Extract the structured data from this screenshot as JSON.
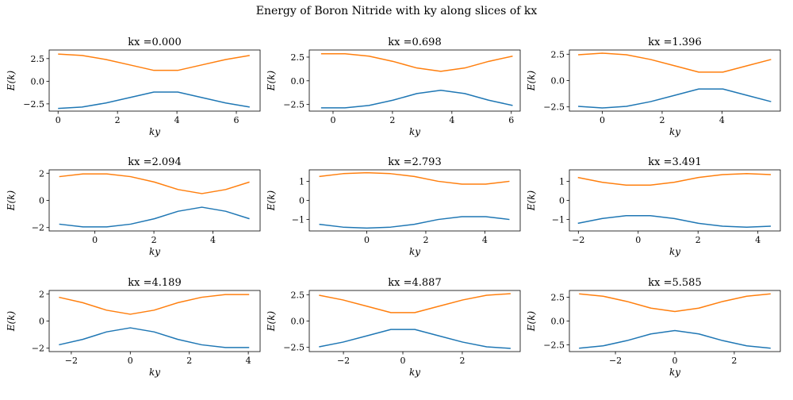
{
  "figure": {
    "title": "Energy of Boron Nitride with ky along slices of kx"
  },
  "colors": {
    "band_lower": "#1f77b4",
    "band_upper": "#ff7f0e",
    "axes": "#000000"
  },
  "chart_data": [
    {
      "type": "line",
      "title": "kx =0.000",
      "kx": "0.000",
      "xlabel": "ky",
      "ylabel": "E(k)",
      "xlim": [
        -0.3,
        6.8
      ],
      "ylim": [
        -3.3,
        3.45
      ],
      "xticks": [
        0,
        2,
        4,
        6
      ],
      "yticks": [
        -2.5,
        0.0,
        2.5
      ],
      "ytick_labels": [
        "−2.5",
        "0.0",
        "2.5"
      ],
      "x": [
        0.0,
        0.806,
        1.612,
        2.418,
        3.224,
        4.03,
        4.836,
        5.642,
        6.448
      ],
      "series": [
        {
          "values": [
            -3.0,
            -2.85,
            -2.4,
            -1.8,
            -1.2,
            -1.2,
            -1.8,
            -2.4,
            -2.85
          ]
        },
        {
          "values": [
            3.0,
            2.85,
            2.4,
            1.8,
            1.2,
            1.2,
            1.8,
            2.4,
            2.85
          ]
        }
      ]
    },
    {
      "type": "line",
      "title": "kx =0.698",
      "kx": "0.698",
      "xlabel": "ky",
      "ylabel": "E(k)",
      "xlim": [
        -0.8,
        6.3
      ],
      "ylim": [
        -3.2,
        3.25
      ],
      "xticks": [
        0,
        2,
        4,
        6
      ],
      "yticks": [
        -2.5,
        0.0,
        2.5
      ],
      "ytick_labels": [
        "−2.5",
        "0.0",
        "2.5"
      ],
      "x": [
        -0.403,
        0.403,
        1.209,
        2.015,
        2.821,
        3.627,
        4.433,
        5.239,
        6.045
      ],
      "series": [
        {
          "values": [
            -2.85,
            -2.85,
            -2.6,
            -2.05,
            -1.35,
            -1.0,
            -1.35,
            -2.05,
            -2.6
          ]
        },
        {
          "values": [
            2.85,
            2.85,
            2.6,
            2.05,
            1.35,
            1.0,
            1.35,
            2.05,
            2.6
          ]
        }
      ]
    },
    {
      "type": "line",
      "title": "kx =1.396",
      "kx": "1.396",
      "xlabel": "ky",
      "ylabel": "E(k)",
      "xlim": [
        -1.1,
        5.95
      ],
      "ylim": [
        -2.9,
        2.9
      ],
      "xticks": [
        0,
        2,
        4
      ],
      "yticks": [
        -2.5,
        0.0,
        2.5
      ],
      "ytick_labels": [
        "−2.5",
        "0.0",
        "2.5"
      ],
      "x": [
        -0.806,
        0.0,
        0.806,
        1.612,
        2.418,
        3.224,
        4.03,
        4.836,
        5.642
      ],
      "series": [
        {
          "values": [
            -2.45,
            -2.6,
            -2.45,
            -2.0,
            -1.4,
            -0.8,
            -0.8,
            -1.4,
            -2.0
          ]
        },
        {
          "values": [
            2.45,
            2.6,
            2.45,
            2.0,
            1.4,
            0.8,
            0.8,
            1.4,
            2.0
          ]
        }
      ]
    },
    {
      "type": "line",
      "title": "kx =2.094",
      "kx": "2.094",
      "xlabel": "ky",
      "ylabel": "E(k)",
      "xlim": [
        -1.55,
        5.6
      ],
      "ylim": [
        -2.25,
        2.25
      ],
      "xticks": [
        0,
        2,
        4
      ],
      "yticks": [
        -2,
        0,
        2
      ],
      "ytick_labels": [
        "−2",
        "0",
        "2"
      ],
      "x": [
        -1.209,
        -0.403,
        0.403,
        1.209,
        2.015,
        2.821,
        3.627,
        4.433,
        5.239
      ],
      "series": [
        {
          "values": [
            -1.75,
            -1.95,
            -1.95,
            -1.75,
            -1.35,
            -0.8,
            -0.5,
            -0.8,
            -1.35
          ]
        },
        {
          "values": [
            1.75,
            1.95,
            1.95,
            1.75,
            1.35,
            0.8,
            0.5,
            0.8,
            1.35
          ]
        }
      ]
    },
    {
      "type": "line",
      "title": "kx =2.793",
      "kx": "2.793",
      "xlabel": "ky",
      "ylabel": "E(k)",
      "xlim": [
        -1.95,
        5.2
      ],
      "ylim": [
        -1.6,
        1.6
      ],
      "xticks": [
        0,
        2,
        4
      ],
      "yticks": [
        -1,
        0,
        1
      ],
      "ytick_labels": [
        "−1",
        "0",
        "1"
      ],
      "x": [
        -1.612,
        -0.806,
        0.0,
        0.806,
        1.612,
        2.418,
        3.224,
        4.03,
        4.836
      ],
      "series": [
        {
          "values": [
            -1.25,
            -1.4,
            -1.45,
            -1.4,
            -1.25,
            -1.0,
            -0.85,
            -0.85,
            -1.0
          ]
        },
        {
          "values": [
            1.25,
            1.4,
            1.45,
            1.4,
            1.25,
            1.0,
            0.85,
            0.85,
            1.0
          ]
        }
      ]
    },
    {
      "type": "line",
      "title": "kx =3.491",
      "kx": "3.491",
      "xlabel": "ky",
      "ylabel": "E(k)",
      "xlim": [
        -2.3,
        4.75
      ],
      "ylim": [
        -1.6,
        1.6
      ],
      "xticks": [
        -2,
        0,
        2,
        4
      ],
      "yticks": [
        -1,
        0,
        1
      ],
      "xtick_labels": [
        "−2",
        "0",
        "2",
        "4"
      ],
      "ytick_labels": [
        "−1",
        "0",
        "1"
      ],
      "x": [
        -2.015,
        -1.209,
        -0.403,
        0.403,
        1.209,
        2.015,
        2.821,
        3.627,
        4.433
      ],
      "series": [
        {
          "values": [
            -1.2,
            -0.95,
            -0.8,
            -0.8,
            -0.95,
            -1.2,
            -1.35,
            -1.4,
            -1.35
          ]
        },
        {
          "values": [
            1.2,
            0.95,
            0.8,
            0.8,
            0.95,
            1.2,
            1.35,
            1.4,
            1.35
          ]
        }
      ]
    },
    {
      "type": "line",
      "title": "kx =4.189",
      "kx": "4.189",
      "xlabel": "ky",
      "ylabel": "E(k)",
      "xlim": [
        -2.75,
        4.4
      ],
      "ylim": [
        -2.25,
        2.25
      ],
      "xticks": [
        -2,
        0,
        2,
        4
      ],
      "yticks": [
        -2,
        0,
        2
      ],
      "xtick_labels": [
        "−2",
        "0",
        "2",
        "4"
      ],
      "ytick_labels": [
        "−2",
        "0",
        "2"
      ],
      "x": [
        -2.418,
        -1.612,
        -0.806,
        0.0,
        0.806,
        1.612,
        2.418,
        3.224,
        4.03
      ],
      "series": [
        {
          "values": [
            -1.75,
            -1.35,
            -0.8,
            -0.5,
            -0.8,
            -1.35,
            -1.75,
            -1.95,
            -1.95
          ]
        },
        {
          "values": [
            1.75,
            1.35,
            0.8,
            0.5,
            0.8,
            1.35,
            1.75,
            1.95,
            1.95
          ]
        }
      ]
    },
    {
      "type": "line",
      "title": "kx =4.887",
      "kx": "4.887",
      "xlabel": "ky",
      "ylabel": "E(k)",
      "xlim": [
        -3.15,
        3.95
      ],
      "ylim": [
        -2.9,
        2.9
      ],
      "xticks": [
        -2,
        0,
        2
      ],
      "yticks": [
        -2.5,
        0.0,
        2.5
      ],
      "xtick_labels": [
        "−2",
        "0",
        "2"
      ],
      "ytick_labels": [
        "−2.5",
        "0.0",
        "2.5"
      ],
      "x": [
        -2.821,
        -2.015,
        -1.209,
        -0.403,
        0.403,
        1.209,
        2.015,
        2.821,
        3.627
      ],
      "series": [
        {
          "values": [
            -2.45,
            -2.0,
            -1.4,
            -0.8,
            -0.8,
            -1.4,
            -2.0,
            -2.45,
            -2.6
          ]
        },
        {
          "values": [
            2.45,
            2.0,
            1.4,
            0.8,
            0.8,
            1.4,
            2.0,
            2.45,
            2.6
          ]
        }
      ]
    },
    {
      "type": "line",
      "title": "kx =5.585",
      "kx": "5.585",
      "xlabel": "ky",
      "ylabel": "E(k)",
      "xlim": [
        -3.55,
        3.55
      ],
      "ylim": [
        -3.2,
        3.2
      ],
      "xticks": [
        -2,
        0,
        2
      ],
      "yticks": [
        -2.5,
        0.0,
        2.5
      ],
      "xtick_labels": [
        "−2",
        "0",
        "2"
      ],
      "ytick_labels": [
        "−2.5",
        "0.0",
        "2.5"
      ],
      "x": [
        -3.224,
        -2.418,
        -1.612,
        -0.806,
        0.0,
        0.806,
        1.612,
        2.418,
        3.224
      ],
      "series": [
        {
          "values": [
            -2.85,
            -2.6,
            -2.05,
            -1.35,
            -1.0,
            -1.35,
            -2.05,
            -2.6,
            -2.85
          ]
        },
        {
          "values": [
            2.85,
            2.6,
            2.05,
            1.35,
            1.0,
            1.35,
            2.05,
            2.6,
            2.85
          ]
        }
      ]
    }
  ]
}
